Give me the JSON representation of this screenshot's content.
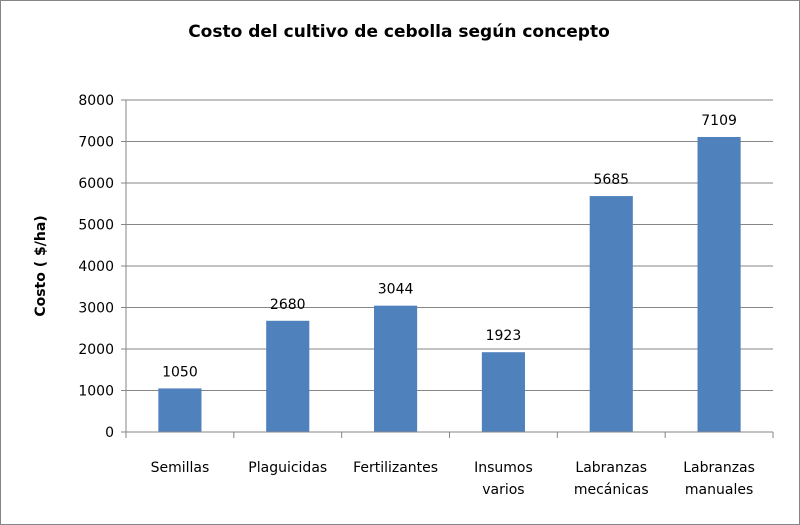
{
  "chart_data": {
    "type": "bar",
    "title": "Costo del cultivo de cebolla según concepto",
    "xlabel": "",
    "ylabel": "Costo ( $/ha)",
    "categories": [
      [
        "Semillas"
      ],
      [
        "Plaguicidas"
      ],
      [
        "Fertilizantes"
      ],
      [
        "Insumos",
        "varios"
      ],
      [
        "Labranzas",
        "mecánicas"
      ],
      [
        "Labranzas",
        "manuales"
      ]
    ],
    "values": [
      1050,
      2680,
      3044,
      1923,
      5685,
      7109
    ],
    "data_labels": [
      "1050",
      "2680",
      "3044",
      "1923",
      "5685",
      "7109"
    ],
    "ylim": [
      0,
      8000
    ],
    "yticks": [
      0,
      1000,
      2000,
      3000,
      4000,
      5000,
      6000,
      7000,
      8000
    ],
    "grid": true,
    "legend": "none",
    "colors": {
      "bar": "#4F81BD",
      "grid": "#868686",
      "axis": "#868686"
    }
  }
}
